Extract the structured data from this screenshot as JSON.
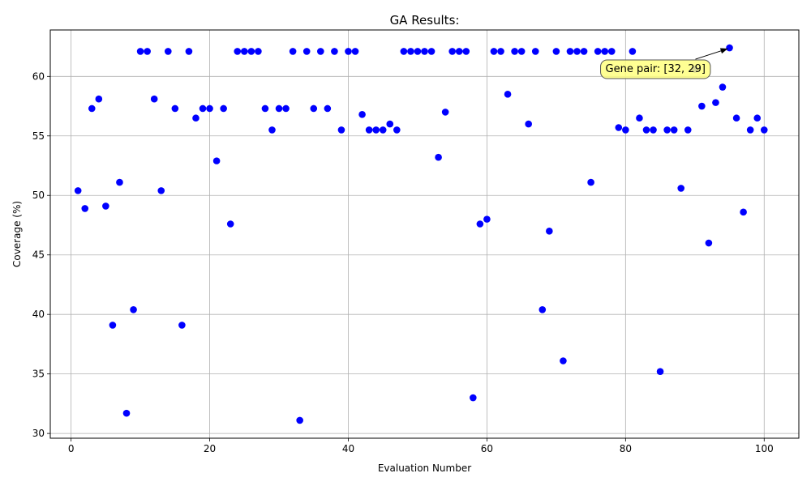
{
  "chart_data": {
    "type": "scatter",
    "title": "GA Results:",
    "xlabel": "Evaluation Number",
    "ylabel": "Coverage (%)",
    "xlim": [
      -3,
      105
    ],
    "ylim": [
      29.6,
      63.9
    ],
    "xticks": [
      0,
      20,
      40,
      60,
      80,
      100
    ],
    "yticks": [
      30,
      35,
      40,
      45,
      50,
      55,
      60
    ],
    "grid": true,
    "marker_color": "#0000ff",
    "annotation": {
      "text": "Gene pair: [32, 29]",
      "point": [
        95,
        62.4
      ],
      "box_color": "#ffff80"
    },
    "x": [
      1,
      2,
      3,
      4,
      5,
      6,
      7,
      8,
      9,
      10,
      11,
      12,
      13,
      14,
      15,
      16,
      17,
      18,
      19,
      20,
      21,
      22,
      23,
      24,
      25,
      26,
      27,
      28,
      29,
      30,
      31,
      32,
      33,
      34,
      35,
      36,
      37,
      38,
      39,
      40,
      41,
      42,
      43,
      44,
      45,
      46,
      47,
      48,
      49,
      50,
      51,
      52,
      53,
      54,
      55,
      56,
      57,
      58,
      59,
      60,
      61,
      62,
      63,
      64,
      65,
      66,
      67,
      68,
      69,
      70,
      71,
      72,
      73,
      74,
      75,
      76,
      77,
      78,
      79,
      80,
      81,
      82,
      83,
      84,
      85,
      86,
      87,
      88,
      89,
      90,
      91,
      92,
      93,
      94,
      95,
      96,
      97,
      98,
      99,
      100
    ],
    "y": [
      50.4,
      48.9,
      57.3,
      58.1,
      49.1,
      39.1,
      51.1,
      31.7,
      40.4,
      62.1,
      62.1,
      58.1,
      50.4,
      62.1,
      57.3,
      39.1,
      62.1,
      56.5,
      57.3,
      57.3,
      52.9,
      57.3,
      47.6,
      62.1,
      62.1,
      62.1,
      62.1,
      57.3,
      55.5,
      57.3,
      57.3,
      62.1,
      31.1,
      62.1,
      57.3,
      62.1,
      57.3,
      62.1,
      55.5,
      62.1,
      62.1,
      56.8,
      55.5,
      55.5,
      55.5,
      56.0,
      55.5,
      62.1,
      62.1,
      62.1,
      62.1,
      62.1,
      53.2,
      57.0,
      62.1,
      62.1,
      62.1,
      33.0,
      47.6,
      48.0,
      62.1,
      62.1,
      58.5,
      62.1,
      62.1,
      56.0,
      62.1,
      40.4,
      47.0,
      62.1,
      36.1,
      62.1,
      62.1,
      62.1,
      51.1,
      62.1,
      62.1,
      62.1,
      55.7,
      55.5,
      62.1,
      56.5,
      55.5,
      55.5,
      35.2,
      55.5,
      55.5,
      50.6,
      55.5,
      60.6,
      57.5,
      46.0,
      57.8,
      59.1,
      62.4,
      56.5,
      48.6,
      55.5,
      56.5,
      55.5
    ]
  }
}
